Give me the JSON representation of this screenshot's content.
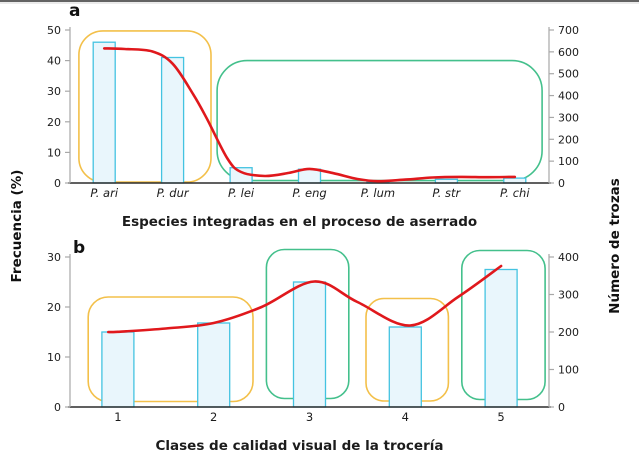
{
  "figure": {
    "panel_a_letter": "a",
    "panel_b_letter": "b",
    "left_axis_title": "Frecuencia (%)",
    "right_axis_title": "Número de trozas"
  },
  "colors": {
    "bar_fill": "#e9f6fc",
    "bar_stroke": "#44c3e1",
    "trend_line": "#e0181c",
    "box_yellow": "#f3c04a",
    "box_green": "#44c08c",
    "axis_dark": "#2b2b2b",
    "axis_light": "#a8a8a8",
    "text": "#1c1c1c"
  },
  "chart_data": [
    {
      "panel": "a",
      "type": "bar",
      "xlabel": "Especies integradas en el proceso de aserrado",
      "ylabel_left": "Frecuencia (%)",
      "ylabel_right": "Número de trozas",
      "categories": [
        "P. ari",
        "P. dur",
        "P. lei",
        "P. eng",
        "P. lum",
        "P. str",
        "P. chi"
      ],
      "bar_values_pct": [
        46,
        41,
        5,
        4.5,
        0.3,
        1.2,
        1.6
      ],
      "line_points": [
        [
          1.0,
          44
        ],
        [
          1.3,
          43.8
        ],
        [
          1.7,
          43
        ],
        [
          2.0,
          39
        ],
        [
          2.3,
          29
        ],
        [
          2.5,
          21
        ],
        [
          2.8,
          8
        ],
        [
          3.0,
          3.6
        ],
        [
          3.35,
          2.3
        ],
        [
          3.7,
          3.3
        ],
        [
          4.0,
          4.6
        ],
        [
          4.35,
          3.2
        ],
        [
          4.7,
          1.3
        ],
        [
          5.0,
          0.6
        ],
        [
          5.4,
          1.1
        ],
        [
          5.8,
          1.8
        ],
        [
          6.2,
          2.0
        ],
        [
          6.6,
          1.9
        ],
        [
          7.0,
          2.0
        ]
      ],
      "left_ticks": [
        0,
        10,
        20,
        30,
        40,
        50
      ],
      "right_ticks": [
        0,
        100,
        200,
        300,
        400,
        500,
        600,
        700
      ],
      "ylim_left": [
        0,
        50
      ],
      "ylim_right": [
        0,
        700
      ],
      "italic_categories": true,
      "grid": false,
      "boxes": [
        {
          "color": "yellow",
          "x1": 0.63,
          "x2": 2.56,
          "y1": 0.3,
          "y2": 49.7,
          "r": 24
        },
        {
          "color": "green",
          "x1": 2.65,
          "x2": 7.4,
          "y1": 0.8,
          "y2": 40.0,
          "r": 30
        }
      ]
    },
    {
      "panel": "b",
      "type": "bar",
      "xlabel": "Clases de calidad visual de la trocería",
      "ylabel_left": "Frecuencia (%)",
      "ylabel_right": "Número de trozas",
      "categories": [
        "1",
        "2",
        "3",
        "4",
        "5"
      ],
      "bar_values_pct": [
        15,
        16.8,
        25,
        16,
        27.5
      ],
      "line_points": [
        [
          0.9,
          15
        ],
        [
          1.0,
          15.05
        ],
        [
          1.5,
          15.7
        ],
        [
          2.0,
          16.8
        ],
        [
          2.5,
          20
        ],
        [
          3.05,
          25.1
        ],
        [
          3.5,
          21
        ],
        [
          4.05,
          16.3
        ],
        [
          4.55,
          22
        ],
        [
          5.0,
          28.2
        ]
      ],
      "left_ticks": [
        0,
        10,
        20,
        30
      ],
      "right_ticks": [
        0,
        100,
        200,
        300,
        400
      ],
      "ylim_left": [
        0,
        30
      ],
      "ylim_right": [
        0,
        400
      ],
      "italic_categories": false,
      "grid": false,
      "boxes": [
        {
          "color": "yellow",
          "x1": 0.69,
          "x2": 2.41,
          "y1": 1.1,
          "y2": 22.0,
          "r": 20
        },
        {
          "color": "green",
          "x1": 2.55,
          "x2": 3.41,
          "y1": 1.7,
          "y2": 31.5,
          "r": 18
        },
        {
          "color": "yellow",
          "x1": 3.59,
          "x2": 4.45,
          "y1": 1.2,
          "y2": 21.7,
          "r": 18
        },
        {
          "color": "green",
          "x1": 4.59,
          "x2": 5.46,
          "y1": 1.5,
          "y2": 31.3,
          "r": 18
        }
      ]
    }
  ]
}
